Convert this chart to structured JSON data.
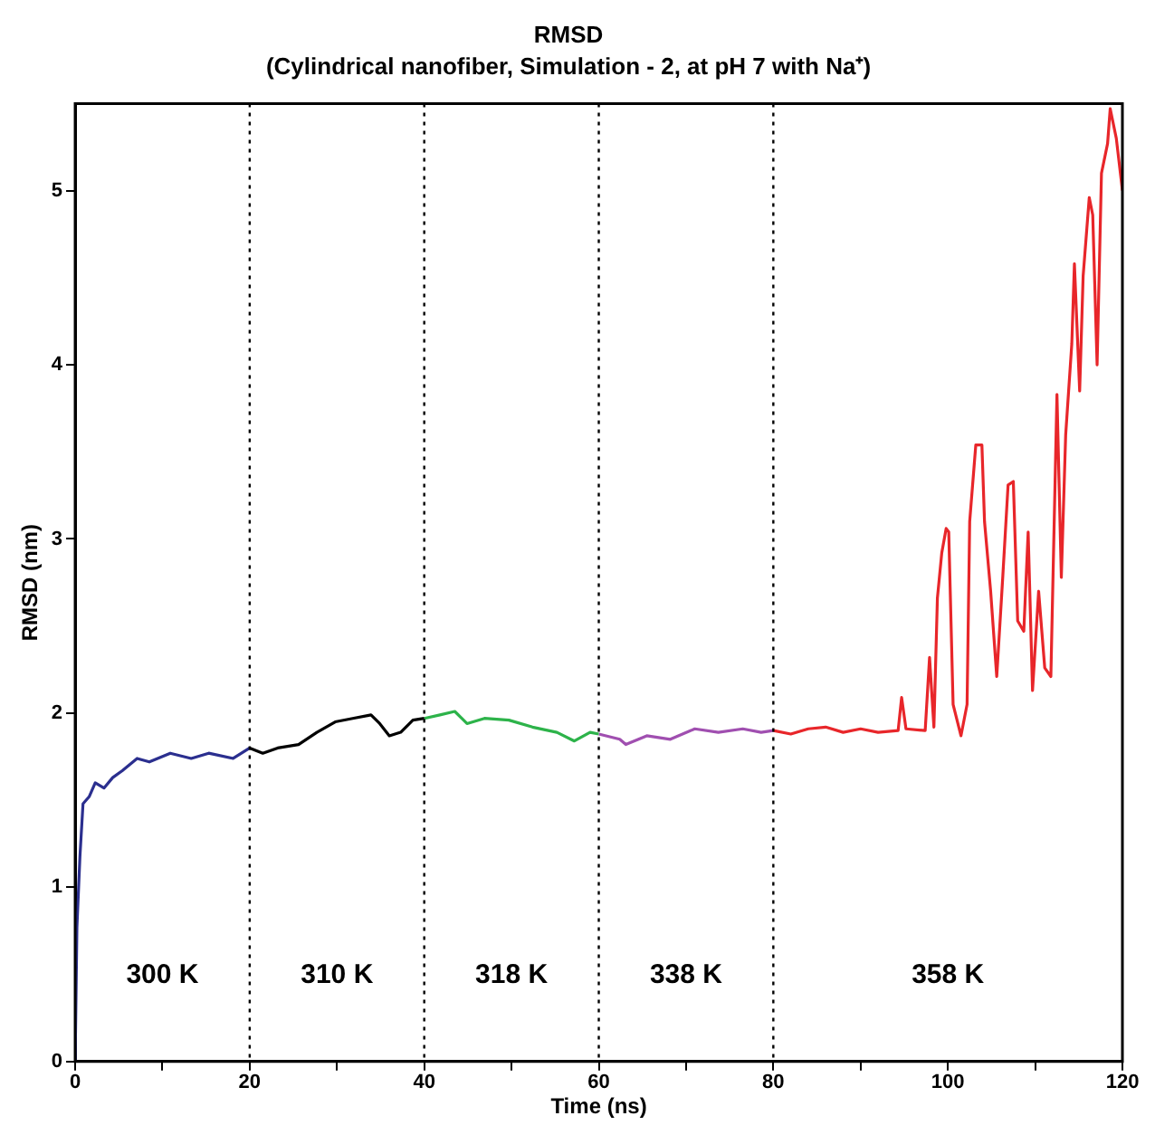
{
  "chart_data": {
    "type": "line",
    "title": "RMSD",
    "subtitle": "(Cylindrical nanofiber, Simulation - 2, at pH 7 with Na⁺)",
    "xlabel": "Time (ns)",
    "ylabel": "RMSD (nm)",
    "xlim": [
      0,
      120
    ],
    "ylim": [
      0,
      5.5
    ],
    "xticks": [
      0,
      {
        "value": 10,
        "label": null
      },
      20,
      {
        "value": 30,
        "label": null
      },
      40,
      {
        "value": 50,
        "label": null
      },
      60,
      {
        "value": 70,
        "label": null
      },
      80,
      {
        "value": 90,
        "label": null
      },
      100,
      {
        "value": 110,
        "label": null
      },
      120
    ],
    "yticks": [
      0,
      1,
      2,
      3,
      4,
      5
    ],
    "grid": false,
    "legend": false,
    "marker": "none",
    "line_style": "solid",
    "series": [
      {
        "color": "#2b2f8f",
        "x": [
          0,
          0.2,
          0.55,
          0.9,
          1.6,
          2.3,
          3.3,
          4.3,
          5.4,
          7.1,
          8.5,
          10.9,
          13.3,
          15.3,
          18.1,
          20
        ],
        "values": [
          0,
          0.77,
          1.18,
          1.48,
          1.52,
          1.6,
          1.57,
          1.63,
          1.67,
          1.74,
          1.72,
          1.77,
          1.74,
          1.77,
          1.74,
          1.8
        ]
      },
      {
        "color": "#000000",
        "x": [
          20,
          21.5,
          23.2,
          25.6,
          27.7,
          29.8,
          31.8,
          33.9,
          34.9,
          36,
          37.3,
          38.7,
          40
        ],
        "values": [
          1.8,
          1.77,
          1.8,
          1.82,
          1.89,
          1.95,
          1.97,
          1.99,
          1.94,
          1.87,
          1.89,
          1.96,
          1.97
        ]
      },
      {
        "color": "#2db34a",
        "x": [
          40,
          41.8,
          43.5,
          44.9,
          46.9,
          49.7,
          52.4,
          55.2,
          57.2,
          59,
          60
        ],
        "values": [
          1.97,
          1.99,
          2.01,
          1.94,
          1.97,
          1.96,
          1.92,
          1.89,
          1.84,
          1.89,
          1.88
        ]
      },
      {
        "color": "#a04fb0",
        "x": [
          60,
          62.4,
          63.1,
          65.5,
          68.2,
          71,
          73.7,
          76.5,
          78.6,
          80
        ],
        "values": [
          1.88,
          1.85,
          1.82,
          1.87,
          1.85,
          1.91,
          1.89,
          1.91,
          1.89,
          1.9
        ]
      },
      {
        "color": "#e8262a",
        "x": [
          80,
          82,
          84,
          86,
          88,
          90,
          92,
          94.3,
          94.7,
          95.2,
          97.4,
          97.9,
          98.4,
          98.8,
          99.3,
          99.8,
          100.1,
          100.6,
          101.5,
          102.2,
          102.5,
          103.2,
          103.9,
          104.2,
          104.9,
          105.6,
          106.3,
          106.9,
          107.5,
          108,
          108.7,
          109.2,
          109.7,
          110.4,
          111.1,
          111.8,
          112.5,
          113,
          113.5,
          114.2,
          114.5,
          115.1,
          115.5,
          116.2,
          116.6,
          117.1,
          117.6,
          118.3,
          118.6,
          119.3,
          120
        ],
        "values": [
          1.9,
          1.88,
          1.91,
          1.92,
          1.89,
          1.91,
          1.89,
          1.9,
          2.09,
          1.91,
          1.9,
          2.32,
          1.92,
          2.66,
          2.92,
          3.06,
          3.04,
          2.05,
          1.87,
          2.05,
          3.1,
          3.54,
          3.54,
          3.1,
          2.7,
          2.21,
          2.79,
          3.31,
          3.33,
          2.53,
          2.47,
          3.04,
          2.13,
          2.7,
          2.26,
          2.21,
          3.83,
          2.78,
          3.6,
          4.12,
          4.58,
          3.85,
          4.51,
          4.96,
          4.86,
          4.0,
          5.1,
          5.27,
          5.47,
          5.3,
          5.0
        ]
      }
    ],
    "ref_lines": [
      {
        "axis": "x",
        "value": 20,
        "color": "#000000",
        "line_style": "dotted"
      },
      {
        "axis": "x",
        "value": 40,
        "color": "#000000",
        "line_style": "dotted"
      },
      {
        "axis": "x",
        "value": 60,
        "color": "#000000",
        "line_style": "dotted"
      },
      {
        "axis": "x",
        "value": 80,
        "color": "#000000",
        "line_style": "dotted"
      }
    ],
    "annotations": [
      "300 K",
      "310 K",
      "318 K",
      "338 K",
      "358 K"
    ]
  }
}
